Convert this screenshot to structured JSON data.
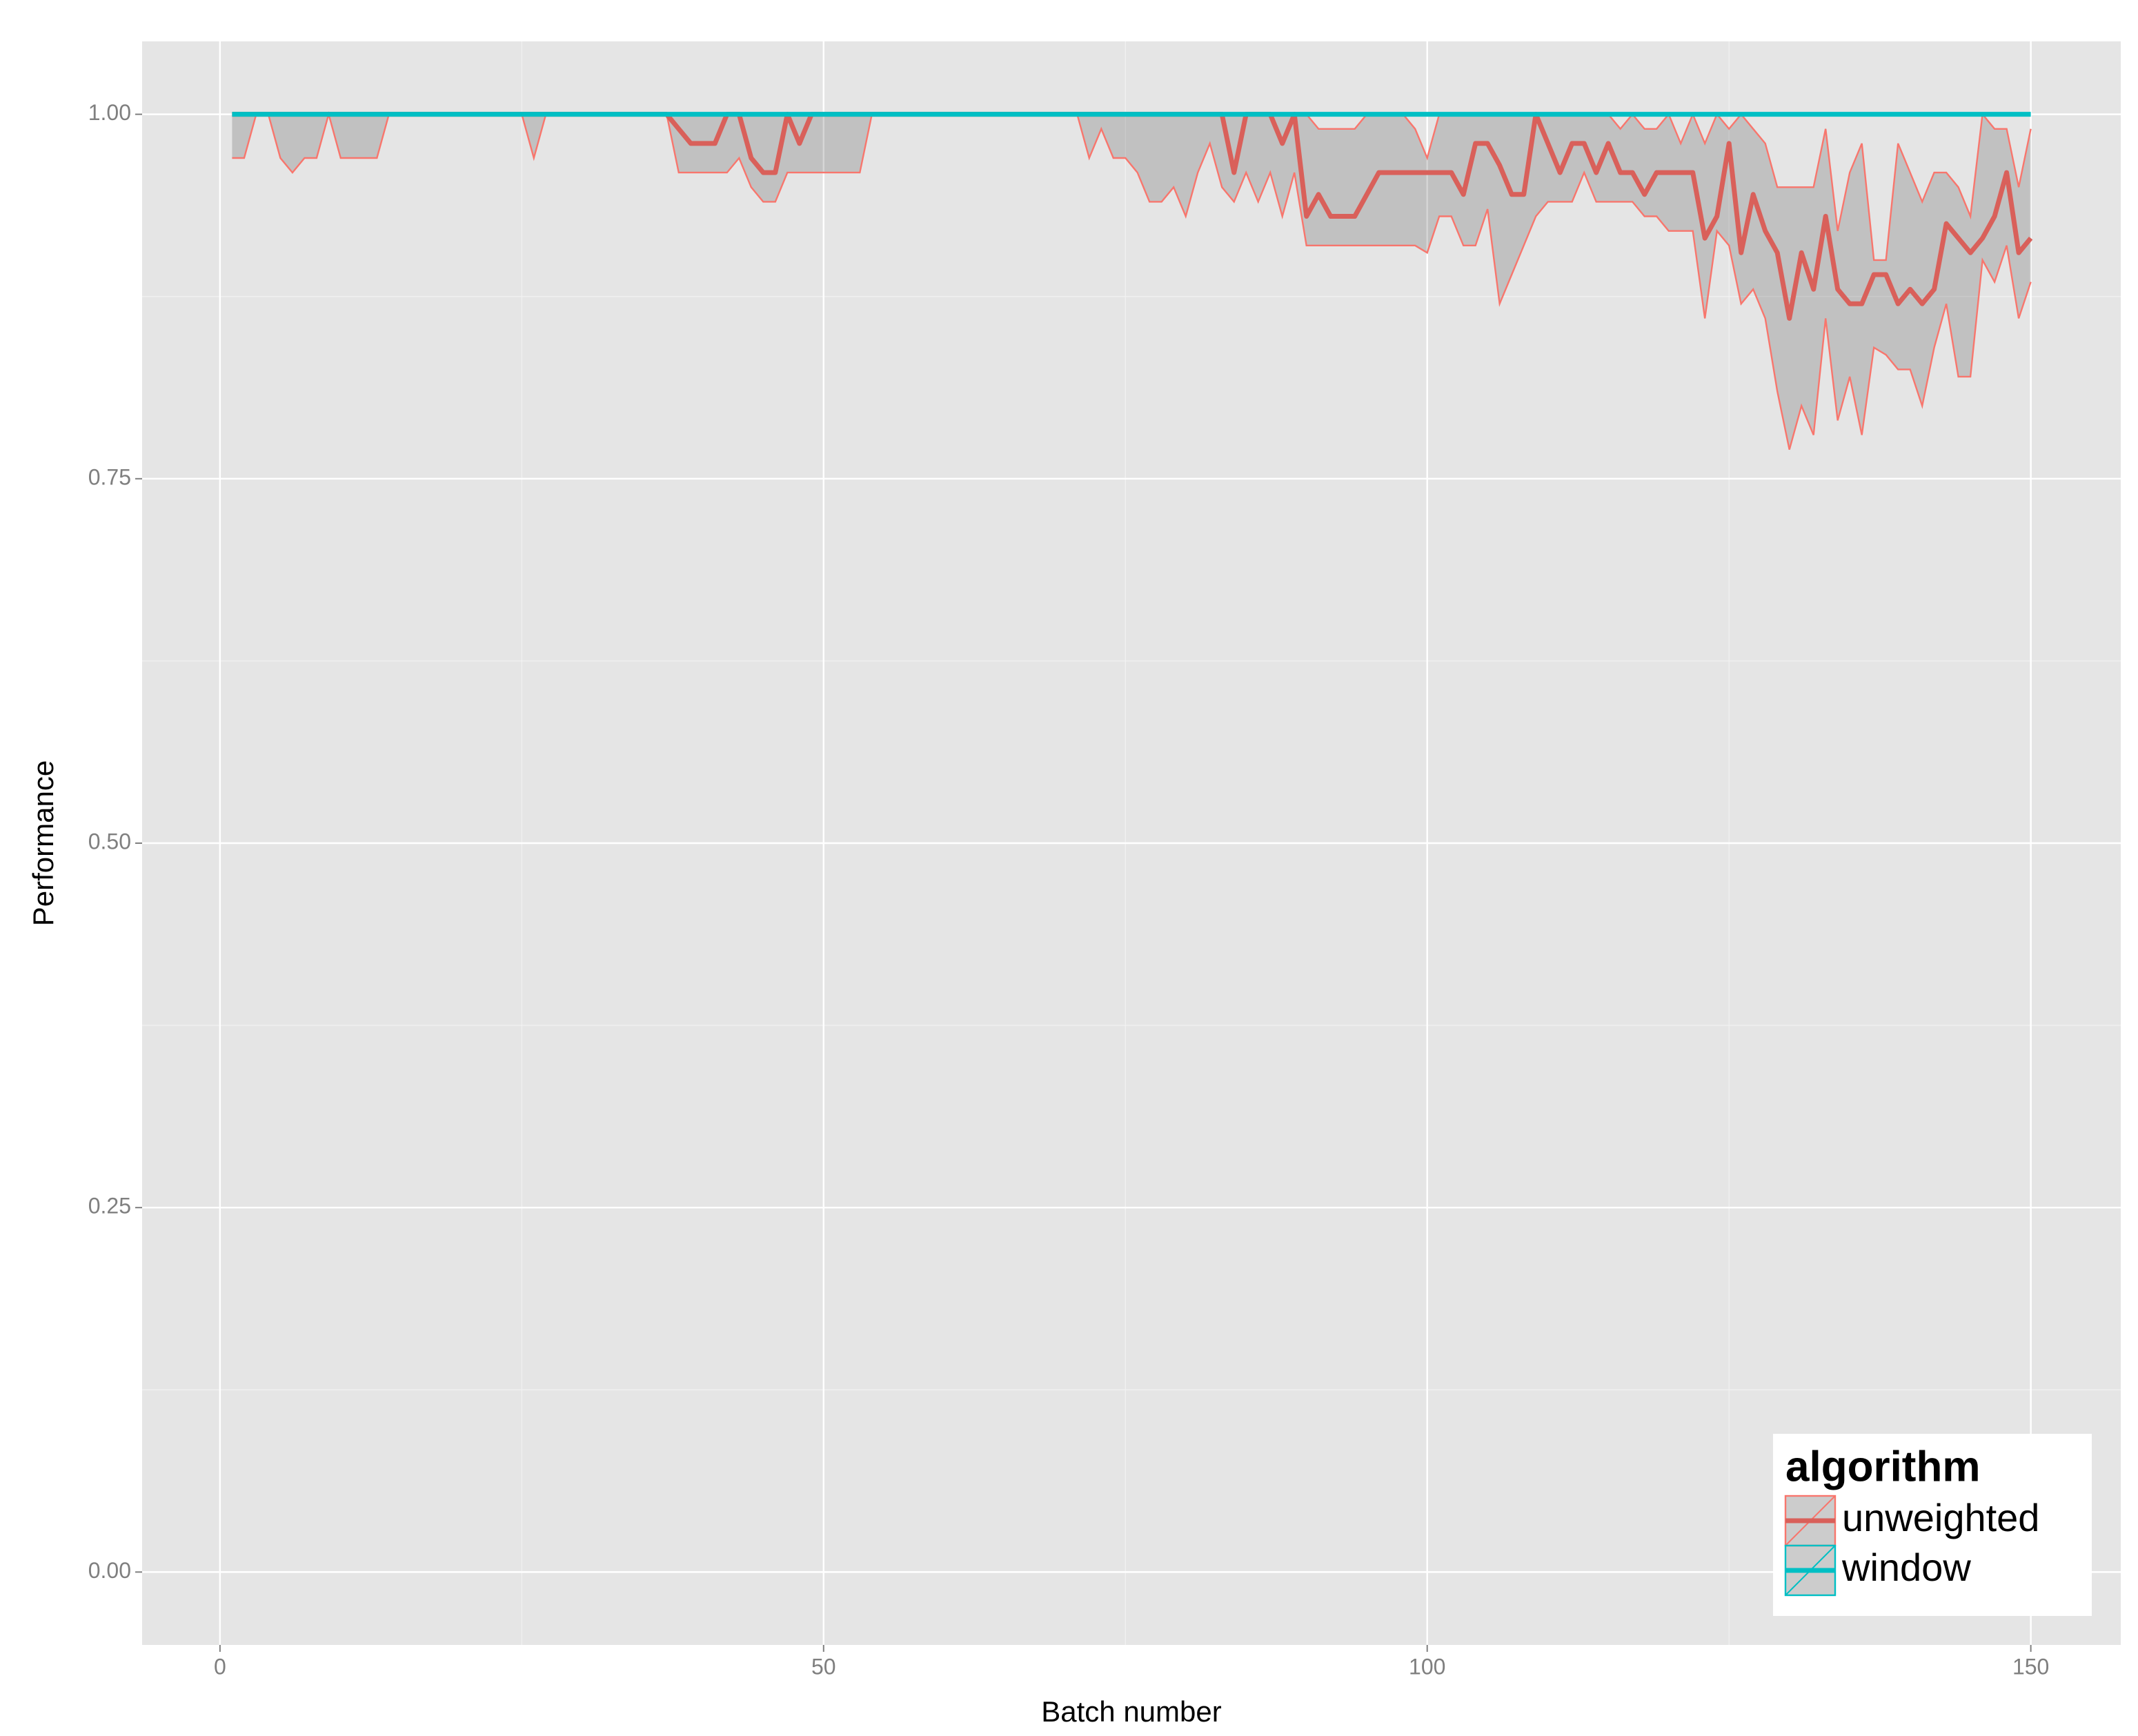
{
  "chart_data": {
    "type": "line",
    "x_label": "Batch number",
    "y_label": "Performance",
    "legend_title": "algorithm",
    "legend_position": "bottom-right",
    "grid": true,
    "ribbon_color": "#333333",
    "xlim": [
      -6.45,
      157.45
    ],
    "ylim": [
      -0.05,
      1.05
    ],
    "xticks": [
      0,
      50,
      100,
      150
    ],
    "yticks": [
      {
        "value": 0,
        "label": "0.00"
      },
      {
        "value": 0.25,
        "label": "0.25"
      },
      {
        "value": 0.5,
        "label": "0.50"
      },
      {
        "value": 0.75,
        "label": "0.75"
      },
      {
        "value": 1,
        "label": "1.00"
      }
    ],
    "x": [
      1,
      2,
      3,
      4,
      5,
      6,
      7,
      8,
      9,
      10,
      11,
      12,
      13,
      14,
      15,
      16,
      17,
      18,
      19,
      20,
      21,
      22,
      23,
      24,
      25,
      26,
      27,
      28,
      29,
      30,
      31,
      32,
      33,
      34,
      35,
      36,
      37,
      38,
      39,
      40,
      41,
      42,
      43,
      44,
      45,
      46,
      47,
      48,
      49,
      50,
      51,
      52,
      53,
      54,
      55,
      56,
      57,
      58,
      59,
      60,
      61,
      62,
      63,
      64,
      65,
      66,
      67,
      68,
      69,
      70,
      71,
      72,
      73,
      74,
      75,
      76,
      77,
      78,
      79,
      80,
      81,
      82,
      83,
      84,
      85,
      86,
      87,
      88,
      89,
      90,
      91,
      92,
      93,
      94,
      95,
      96,
      97,
      98,
      99,
      100,
      101,
      102,
      103,
      104,
      105,
      106,
      107,
      108,
      109,
      110,
      111,
      112,
      113,
      114,
      115,
      116,
      117,
      118,
      119,
      120,
      121,
      122,
      123,
      124,
      125,
      126,
      127,
      128,
      129,
      130,
      131,
      132,
      133,
      134,
      135,
      136,
      137,
      138,
      139,
      140,
      141,
      142,
      143,
      144,
      145,
      146,
      147,
      148,
      149,
      150
    ],
    "series": [
      {
        "name": "unweighted",
        "color": "#F8766D",
        "line_color": "#D9605A",
        "values": [
          1,
          1,
          1,
          1,
          1,
          1,
          1,
          1,
          1,
          1,
          1,
          1,
          1,
          1,
          1,
          1,
          1,
          1,
          1,
          1,
          1,
          1,
          1,
          1,
          1,
          1,
          1,
          1,
          1,
          1,
          1,
          1,
          1,
          1,
          1,
          1,
          1,
          0.99,
          0.98,
          0.98,
          0.98,
          1,
          1,
          0.97,
          0.96,
          0.96,
          1,
          0.98,
          1,
          1,
          1,
          1,
          1,
          1,
          1,
          1,
          1,
          1,
          1,
          1,
          1,
          1,
          1,
          1,
          1,
          1,
          1,
          1,
          1,
          1,
          1,
          1,
          1,
          1,
          1,
          1,
          1,
          1,
          1,
          1,
          1,
          1,
          1,
          0.96,
          1,
          1,
          1,
          0.98,
          1,
          0.93,
          0.945,
          0.93,
          0.93,
          0.93,
          0.945,
          0.96,
          0.96,
          0.96,
          0.96,
          0.96,
          0.96,
          0.96,
          0.945,
          0.98,
          0.98,
          0.965,
          0.945,
          0.945,
          1,
          0.98,
          0.96,
          0.98,
          0.98,
          0.96,
          0.98,
          0.96,
          0.96,
          0.945,
          0.96,
          0.96,
          0.96,
          0.96,
          0.915,
          0.93,
          0.98,
          0.905,
          0.945,
          0.92,
          0.905,
          0.86,
          0.905,
          0.88,
          0.93,
          0.88,
          0.87,
          0.87,
          0.89,
          0.89,
          0.87,
          0.88,
          0.87,
          0.88,
          0.925,
          0.915,
          0.905,
          0.915,
          0.93,
          0.96,
          0.905,
          0.915
        ],
        "lower": [
          0.97,
          0.97,
          1,
          1,
          0.97,
          0.96,
          0.97,
          0.97,
          1,
          0.97,
          0.97,
          0.97,
          0.97,
          1,
          1,
          1,
          1,
          1,
          1,
          1,
          1,
          1,
          1,
          1,
          1,
          0.97,
          1,
          1,
          1,
          1,
          1,
          1,
          1,
          1,
          1,
          1,
          1,
          0.96,
          0.96,
          0.96,
          0.96,
          0.96,
          0.97,
          0.95,
          0.94,
          0.94,
          0.96,
          0.96,
          0.96,
          0.96,
          0.96,
          0.96,
          0.96,
          1,
          1,
          1,
          1,
          1,
          1,
          1,
          1,
          1,
          1,
          1,
          1,
          1,
          1,
          1,
          1,
          1,
          1,
          0.97,
          0.99,
          0.97,
          0.97,
          0.96,
          0.94,
          0.94,
          0.95,
          0.93,
          0.96,
          0.98,
          0.95,
          0.94,
          0.96,
          0.94,
          0.96,
          0.93,
          0.96,
          0.91,
          0.91,
          0.91,
          0.91,
          0.91,
          0.91,
          0.91,
          0.91,
          0.91,
          0.91,
          0.905,
          0.93,
          0.93,
          0.91,
          0.91,
          0.935,
          0.87,
          0.89,
          0.91,
          0.93,
          0.94,
          0.94,
          0.94,
          0.96,
          0.94,
          0.94,
          0.94,
          0.94,
          0.93,
          0.93,
          0.92,
          0.92,
          0.92,
          0.86,
          0.92,
          0.91,
          0.87,
          0.88,
          0.86,
          0.81,
          0.77,
          0.8,
          0.78,
          0.86,
          0.79,
          0.82,
          0.78,
          0.84,
          0.835,
          0.825,
          0.825,
          0.8,
          0.84,
          0.87,
          0.82,
          0.82,
          0.9,
          0.885,
          0.91,
          0.86,
          0.885
        ],
        "upper": [
          1,
          1,
          1,
          1,
          1,
          1,
          1,
          1,
          1,
          1,
          1,
          1,
          1,
          1,
          1,
          1,
          1,
          1,
          1,
          1,
          1,
          1,
          1,
          1,
          1,
          1,
          1,
          1,
          1,
          1,
          1,
          1,
          1,
          1,
          1,
          1,
          1,
          1,
          1,
          1,
          1,
          1,
          1,
          1,
          1,
          1,
          1,
          1,
          1,
          1,
          1,
          1,
          1,
          1,
          1,
          1,
          1,
          1,
          1,
          1,
          1,
          1,
          1,
          1,
          1,
          1,
          1,
          1,
          1,
          1,
          1,
          1,
          1,
          1,
          1,
          1,
          1,
          1,
          1,
          1,
          1,
          1,
          1,
          1,
          1,
          1,
          1,
          1,
          1,
          1,
          0.99,
          0.99,
          0.99,
          0.99,
          1,
          1,
          1,
          1,
          0.99,
          0.97,
          1,
          1,
          1,
          1,
          1,
          1,
          1,
          1,
          1,
          1,
          1,
          1,
          1,
          1,
          1,
          0.99,
          1,
          0.99,
          0.99,
          1,
          0.98,
          1,
          0.98,
          1,
          0.99,
          1,
          0.99,
          0.98,
          0.95,
          0.95,
          0.95,
          0.95,
          0.99,
          0.92,
          0.96,
          0.98,
          0.9,
          0.9,
          0.98,
          0.96,
          0.94,
          0.96,
          0.96,
          0.95,
          0.93,
          1,
          0.99,
          0.99,
          0.95,
          0.99
        ]
      },
      {
        "name": "window",
        "color": "#00BFC4",
        "line_color": "#00BFC4",
        "values": [
          1,
          1,
          1,
          1,
          1,
          1,
          1,
          1,
          1,
          1,
          1,
          1,
          1,
          1,
          1,
          1,
          1,
          1,
          1,
          1,
          1,
          1,
          1,
          1,
          1,
          1,
          1,
          1,
          1,
          1,
          1,
          1,
          1,
          1,
          1,
          1,
          1,
          1,
          1,
          1,
          1,
          1,
          1,
          1,
          1,
          1,
          1,
          1,
          1,
          1,
          1,
          1,
          1,
          1,
          1,
          1,
          1,
          1,
          1,
          1,
          1,
          1,
          1,
          1,
          1,
          1,
          1,
          1,
          1,
          1,
          1,
          1,
          1,
          1,
          1,
          1,
          1,
          1,
          1,
          1,
          1,
          1,
          1,
          1,
          1,
          1,
          1,
          1,
          1,
          1,
          1,
          1,
          1,
          1,
          1,
          1,
          1,
          1,
          1,
          1,
          1,
          1,
          1,
          1,
          1,
          1,
          1,
          1,
          1,
          1,
          1,
          1,
          1,
          1,
          1,
          1,
          1,
          1,
          1,
          1,
          1,
          1,
          1,
          1,
          1,
          1,
          1,
          1,
          1,
          1,
          1,
          1,
          1,
          1,
          1,
          1,
          1,
          1,
          1,
          1,
          1,
          1,
          1,
          1,
          1,
          1,
          1,
          1,
          1,
          1
        ]
      }
    ]
  }
}
